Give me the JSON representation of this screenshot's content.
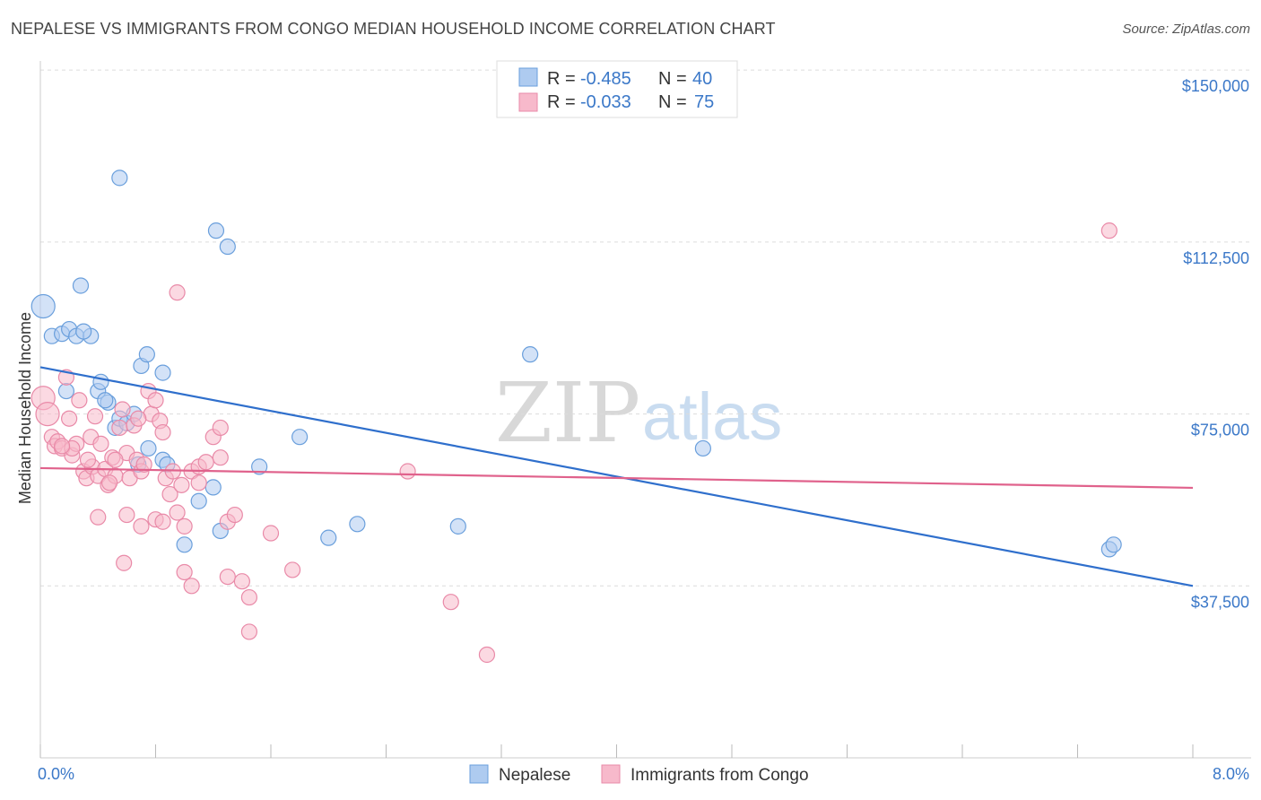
{
  "header": {
    "title": "NEPALESE VS IMMIGRANTS FROM CONGO MEDIAN HOUSEHOLD INCOME CORRELATION CHART",
    "source": "Source: ZipAtlas.com"
  },
  "watermark": {
    "part1": "ZIP",
    "part2": "atlas"
  },
  "legend": {
    "rows": [
      {
        "r_label": "R = ",
        "r_value": "-0.485",
        "n_label": "N = ",
        "n_value": "40",
        "color": "#aecbf0"
      },
      {
        "r_label": "R = ",
        "r_value": "-0.033",
        "n_label": "N = ",
        "n_value": "75",
        "color": "#f7b9cb"
      }
    ]
  },
  "bottom_legend": {
    "series1": "Nepalese",
    "series2": "Immigrants from Congo"
  },
  "chart_data": {
    "type": "scatter",
    "title": "NEPALESE VS IMMIGRANTS FROM CONGO MEDIAN HOUSEHOLD INCOME CORRELATION CHART",
    "xlabel": "",
    "ylabel": "Median Household Income",
    "xlim": [
      0,
      8
    ],
    "ylim": [
      0,
      152000
    ],
    "x_tick_labels": [
      "0.0%",
      "8.0%"
    ],
    "y_ticks": [
      37500,
      75000,
      112500,
      150000
    ],
    "y_tick_labels": [
      "$37,500",
      "$75,000",
      "$112,500",
      "$150,000"
    ],
    "grid": "horizontal dashed",
    "legend_position": "top-center",
    "series": [
      {
        "name": "Nepalese",
        "color": "#6a9fdc",
        "fill": "#aecbf0",
        "trend": {
          "x": [
            0,
            8
          ],
          "y": [
            85200,
            37500
          ],
          "color": "#2f6fcc"
        },
        "points": [
          [
            0.02,
            98500
          ],
          [
            0.08,
            92000
          ],
          [
            0.15,
            92500
          ],
          [
            0.2,
            93500
          ],
          [
            0.25,
            92000
          ],
          [
            0.35,
            92000
          ],
          [
            0.18,
            80000
          ],
          [
            0.28,
            103000
          ],
          [
            0.4,
            80000
          ],
          [
            0.42,
            82000
          ],
          [
            0.47,
            77500
          ],
          [
            0.52,
            72000
          ],
          [
            0.55,
            74000
          ],
          [
            0.6,
            73000
          ],
          [
            0.65,
            75000
          ],
          [
            0.7,
            85500
          ],
          [
            0.74,
            88000
          ],
          [
            0.85,
            84000
          ],
          [
            0.55,
            126500
          ],
          [
            1.22,
            115000
          ],
          [
            1.3,
            111500
          ],
          [
            0.75,
            67500
          ],
          [
            0.68,
            64000
          ],
          [
            0.85,
            65000
          ],
          [
            0.88,
            64000
          ],
          [
            1.2,
            59000
          ],
          [
            1.1,
            56000
          ],
          [
            1.0,
            46500
          ],
          [
            1.25,
            49500
          ],
          [
            1.52,
            63500
          ],
          [
            1.8,
            70000
          ],
          [
            2.0,
            48000
          ],
          [
            2.2,
            51000
          ],
          [
            2.9,
            50500
          ],
          [
            3.4,
            88000
          ],
          [
            4.6,
            67500
          ],
          [
            7.42,
            45500
          ],
          [
            7.45,
            46500
          ],
          [
            0.3,
            93000
          ],
          [
            0.45,
            78000
          ]
        ]
      },
      {
        "name": "Immigrants from Congo",
        "color": "#e98aa8",
        "fill": "#f7b9cb",
        "trend": {
          "x": [
            0,
            8
          ],
          "y": [
            63200,
            58900
          ],
          "color": "#e0628c"
        },
        "points": [
          [
            0.02,
            78500
          ],
          [
            0.05,
            75000
          ],
          [
            0.08,
            70000
          ],
          [
            0.1,
            68000
          ],
          [
            0.12,
            69000
          ],
          [
            0.15,
            67500
          ],
          [
            0.18,
            83000
          ],
          [
            0.2,
            74000
          ],
          [
            0.22,
            66000
          ],
          [
            0.25,
            68500
          ],
          [
            0.27,
            78000
          ],
          [
            0.3,
            62500
          ],
          [
            0.32,
            61000
          ],
          [
            0.35,
            70000
          ],
          [
            0.36,
            63500
          ],
          [
            0.38,
            74500
          ],
          [
            0.4,
            61500
          ],
          [
            0.42,
            68500
          ],
          [
            0.45,
            63000
          ],
          [
            0.47,
            59500
          ],
          [
            0.5,
            65500
          ],
          [
            0.52,
            61500
          ],
          [
            0.55,
            72000
          ],
          [
            0.57,
            76000
          ],
          [
            0.6,
            66500
          ],
          [
            0.62,
            61000
          ],
          [
            0.65,
            72500
          ],
          [
            0.67,
            65000
          ],
          [
            0.7,
            62500
          ],
          [
            0.72,
            64000
          ],
          [
            0.75,
            80000
          ],
          [
            0.77,
            75000
          ],
          [
            0.8,
            78000
          ],
          [
            0.83,
            73500
          ],
          [
            0.85,
            71000
          ],
          [
            0.87,
            61000
          ],
          [
            0.9,
            57500
          ],
          [
            0.92,
            62500
          ],
          [
            0.95,
            53500
          ],
          [
            0.98,
            59500
          ],
          [
            1.0,
            50500
          ],
          [
            1.05,
            62500
          ],
          [
            1.1,
            63500
          ],
          [
            1.15,
            64500
          ],
          [
            1.2,
            70000
          ],
          [
            1.25,
            72000
          ],
          [
            1.3,
            51500
          ],
          [
            1.35,
            53000
          ],
          [
            0.8,
            52000
          ],
          [
            0.85,
            51500
          ],
          [
            0.7,
            50500
          ],
          [
            0.6,
            53000
          ],
          [
            0.4,
            52500
          ],
          [
            0.58,
            42500
          ],
          [
            1.0,
            40500
          ],
          [
            1.05,
            37500
          ],
          [
            1.3,
            39500
          ],
          [
            1.4,
            38500
          ],
          [
            1.45,
            35000
          ],
          [
            1.45,
            27500
          ],
          [
            1.6,
            49000
          ],
          [
            1.75,
            41000
          ],
          [
            1.25,
            65500
          ],
          [
            2.55,
            62500
          ],
          [
            2.85,
            34000
          ],
          [
            3.1,
            22500
          ],
          [
            0.95,
            101500
          ],
          [
            7.42,
            115000
          ],
          [
            0.22,
            67500
          ],
          [
            0.15,
            68000
          ],
          [
            0.33,
            65000
          ],
          [
            0.48,
            60000
          ],
          [
            0.52,
            65000
          ],
          [
            0.68,
            74000
          ],
          [
            1.1,
            60000
          ]
        ]
      }
    ]
  }
}
